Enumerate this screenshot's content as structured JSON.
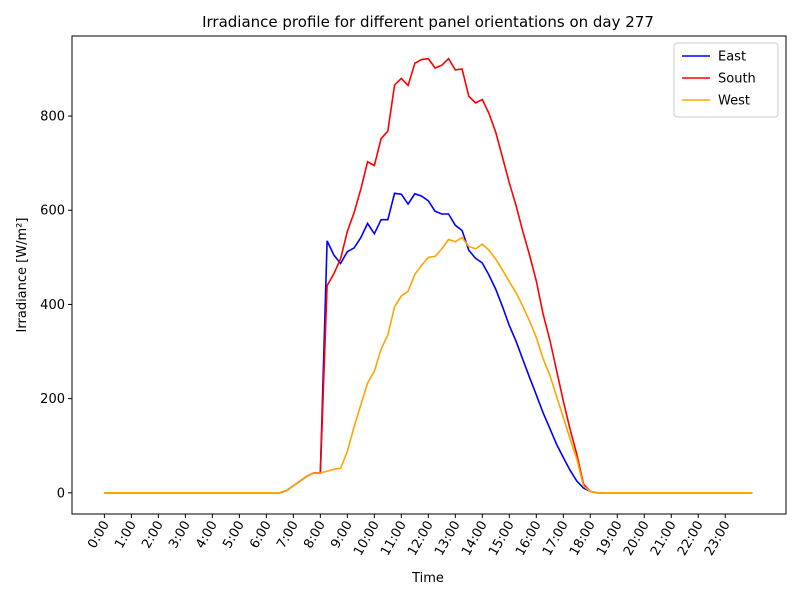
{
  "chart_data": {
    "type": "line",
    "title": "Irradiance profile for different panel orientations on day 277",
    "xlabel": "Time",
    "ylabel": "Irradiance [W/m²]",
    "xlim": [
      -1.2,
      25.25
    ],
    "ylim": [
      -45,
      970
    ],
    "yticks": [
      0,
      200,
      400,
      600,
      800
    ],
    "xticks": [
      {
        "x": 0,
        "label": "0:00"
      },
      {
        "x": 1,
        "label": "1:00"
      },
      {
        "x": 2,
        "label": "2:00"
      },
      {
        "x": 3,
        "label": "3:00"
      },
      {
        "x": 4,
        "label": "4:00"
      },
      {
        "x": 5,
        "label": "5:00"
      },
      {
        "x": 6,
        "label": "6:00"
      },
      {
        "x": 7,
        "label": "7:00"
      },
      {
        "x": 8,
        "label": "8:00"
      },
      {
        "x": 9,
        "label": "9:00"
      },
      {
        "x": 10,
        "label": "10:00"
      },
      {
        "x": 11,
        "label": "11:00"
      },
      {
        "x": 12,
        "label": "12:00"
      },
      {
        "x": 13,
        "label": "13:00"
      },
      {
        "x": 14,
        "label": "14:00"
      },
      {
        "x": 15,
        "label": "15:00"
      },
      {
        "x": 16,
        "label": "16:00"
      },
      {
        "x": 17,
        "label": "17:00"
      },
      {
        "x": 18,
        "label": "18:00"
      },
      {
        "x": 19,
        "label": "19:00"
      },
      {
        "x": 20,
        "label": "20:00"
      },
      {
        "x": 21,
        "label": "21:00"
      },
      {
        "x": 22,
        "label": "22:00"
      },
      {
        "x": 23,
        "label": "23:00"
      }
    ],
    "legend_position": "top-right",
    "grid": false,
    "series": [
      {
        "name": "East",
        "color": "#0000ff",
        "points": [
          [
            0,
            0
          ],
          [
            6.5,
            0
          ],
          [
            6.75,
            5
          ],
          [
            7,
            15
          ],
          [
            7.25,
            25
          ],
          [
            7.5,
            35
          ],
          [
            7.75,
            42
          ],
          [
            8,
            42
          ],
          [
            8.25,
            535
          ],
          [
            8.5,
            505
          ],
          [
            8.75,
            487
          ],
          [
            9,
            512
          ],
          [
            9.25,
            520
          ],
          [
            9.5,
            542
          ],
          [
            9.75,
            572
          ],
          [
            10,
            550
          ],
          [
            10.25,
            580
          ],
          [
            10.5,
            580
          ],
          [
            10.75,
            636
          ],
          [
            11,
            634
          ],
          [
            11.25,
            613
          ],
          [
            11.5,
            635
          ],
          [
            11.75,
            630
          ],
          [
            12,
            620
          ],
          [
            12.25,
            598
          ],
          [
            12.5,
            592
          ],
          [
            12.75,
            592
          ],
          [
            13,
            568
          ],
          [
            13.25,
            557
          ],
          [
            13.5,
            515
          ],
          [
            13.75,
            498
          ],
          [
            14,
            488
          ],
          [
            14.25,
            462
          ],
          [
            14.5,
            432
          ],
          [
            14.75,
            395
          ],
          [
            15,
            355
          ],
          [
            15.25,
            322
          ],
          [
            15.5,
            283
          ],
          [
            15.75,
            245
          ],
          [
            16,
            208
          ],
          [
            16.25,
            170
          ],
          [
            16.5,
            137
          ],
          [
            16.75,
            103
          ],
          [
            17,
            75
          ],
          [
            17.25,
            48
          ],
          [
            17.5,
            25
          ],
          [
            17.75,
            10
          ],
          [
            18,
            3
          ],
          [
            18.25,
            0
          ],
          [
            24,
            0
          ]
        ]
      },
      {
        "name": "South",
        "color": "#ff0000",
        "points": [
          [
            0,
            0
          ],
          [
            6.5,
            0
          ],
          [
            6.75,
            5
          ],
          [
            7,
            15
          ],
          [
            7.25,
            25
          ],
          [
            7.5,
            35
          ],
          [
            7.75,
            42
          ],
          [
            8,
            42
          ],
          [
            8.25,
            440
          ],
          [
            8.5,
            465
          ],
          [
            8.75,
            497
          ],
          [
            9,
            555
          ],
          [
            9.25,
            595
          ],
          [
            9.5,
            645
          ],
          [
            9.75,
            703
          ],
          [
            10,
            695
          ],
          [
            10.25,
            752
          ],
          [
            10.5,
            768
          ],
          [
            10.75,
            866
          ],
          [
            11,
            880
          ],
          [
            11.25,
            865
          ],
          [
            11.5,
            912
          ],
          [
            11.75,
            920
          ],
          [
            12,
            922
          ],
          [
            12.25,
            902
          ],
          [
            12.5,
            908
          ],
          [
            12.75,
            922
          ],
          [
            13,
            898
          ],
          [
            13.25,
            900
          ],
          [
            13.5,
            842
          ],
          [
            13.75,
            828
          ],
          [
            14,
            835
          ],
          [
            14.25,
            805
          ],
          [
            14.5,
            765
          ],
          [
            14.75,
            712
          ],
          [
            15,
            658
          ],
          [
            15.25,
            610
          ],
          [
            15.5,
            555
          ],
          [
            15.75,
            505
          ],
          [
            16,
            450
          ],
          [
            16.25,
            380
          ],
          [
            16.5,
            325
          ],
          [
            16.75,
            260
          ],
          [
            17,
            195
          ],
          [
            17.25,
            135
          ],
          [
            17.5,
            82
          ],
          [
            17.75,
            18
          ],
          [
            18,
            3
          ],
          [
            18.25,
            0
          ],
          [
            24,
            0
          ]
        ]
      },
      {
        "name": "West",
        "color": "#ffa500",
        "points": [
          [
            0,
            0
          ],
          [
            6.5,
            0
          ],
          [
            6.75,
            5
          ],
          [
            7,
            15
          ],
          [
            7.25,
            25
          ],
          [
            7.5,
            35
          ],
          [
            7.75,
            42
          ],
          [
            8,
            42
          ],
          [
            8.25,
            46
          ],
          [
            8.5,
            50
          ],
          [
            8.75,
            52
          ],
          [
            9,
            88
          ],
          [
            9.25,
            140
          ],
          [
            9.5,
            187
          ],
          [
            9.75,
            233
          ],
          [
            10,
            258
          ],
          [
            10.25,
            305
          ],
          [
            10.5,
            335
          ],
          [
            10.75,
            395
          ],
          [
            11,
            418
          ],
          [
            11.25,
            428
          ],
          [
            11.5,
            464
          ],
          [
            11.75,
            483
          ],
          [
            12,
            500
          ],
          [
            12.25,
            502
          ],
          [
            12.5,
            518
          ],
          [
            12.75,
            538
          ],
          [
            13,
            533
          ],
          [
            13.25,
            542
          ],
          [
            13.5,
            523
          ],
          [
            13.75,
            518
          ],
          [
            14,
            528
          ],
          [
            14.25,
            515
          ],
          [
            14.5,
            496
          ],
          [
            14.75,
            473
          ],
          [
            15,
            448
          ],
          [
            15.25,
            425
          ],
          [
            15.5,
            396
          ],
          [
            15.75,
            365
          ],
          [
            16,
            330
          ],
          [
            16.25,
            285
          ],
          [
            16.5,
            250
          ],
          [
            16.75,
            205
          ],
          [
            17,
            160
          ],
          [
            17.25,
            115
          ],
          [
            17.5,
            72
          ],
          [
            17.75,
            14
          ],
          [
            18,
            3
          ],
          [
            18.25,
            0
          ],
          [
            24,
            0
          ]
        ]
      }
    ]
  }
}
